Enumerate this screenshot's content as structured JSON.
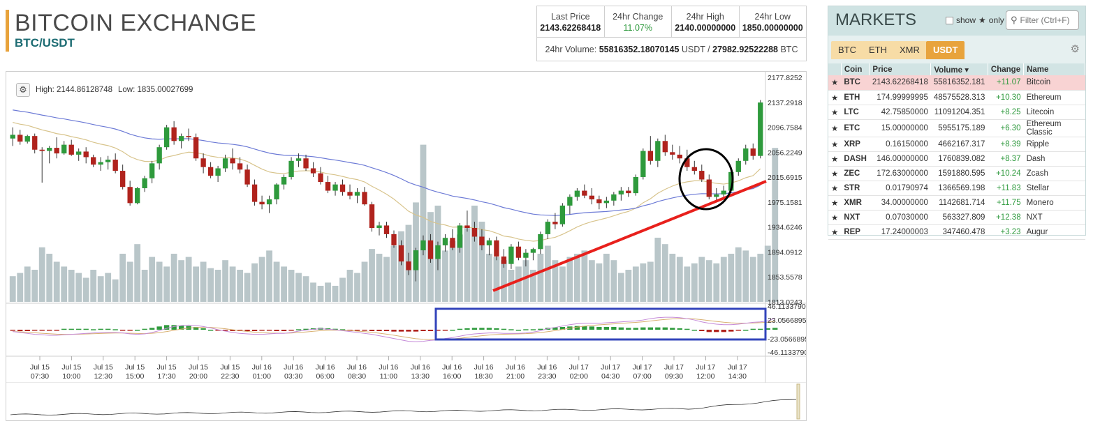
{
  "header": {
    "title": "BITCOIN EXCHANGE",
    "pair": "BTC/USDT"
  },
  "stats": {
    "last_price_label": "Last Price",
    "last_price": "2143.62268418",
    "change_label": "24hr Change",
    "change": "11.07%",
    "high_label": "24hr High",
    "high": "2140.00000000",
    "low_label": "24hr Low",
    "low": "1850.00000000",
    "volume_label": "24hr Volume:",
    "volume_usdt": "55816352.18070145",
    "usdt_unit": "USDT /",
    "volume_btc": "27982.92522288",
    "btc_unit": "BTC"
  },
  "chart": {
    "high_text": "High: 2144.86128748",
    "low_text": "Low: 1835.00027699",
    "price_ticks": [
      "2177.8252",
      "2137.2918",
      "2096.7584",
      "2056.2249",
      "2015.6915",
      "1975.1581",
      "1934.6246",
      "1894.0912",
      "1853.5578",
      "1813.0243"
    ],
    "macd_ticks": [
      "46.1133790",
      "23.0566895",
      "-23.0566895",
      "-46.1133790"
    ],
    "time_labels": [
      [
        "Jul 15",
        "07:30"
      ],
      [
        "Jul 15",
        "10:00"
      ],
      [
        "Jul 15",
        "12:30"
      ],
      [
        "Jul 15",
        "15:00"
      ],
      [
        "Jul 15",
        "17:30"
      ],
      [
        "Jul 15",
        "20:00"
      ],
      [
        "Jul 15",
        "22:30"
      ],
      [
        "Jul 16",
        "01:00"
      ],
      [
        "Jul 16",
        "03:30"
      ],
      [
        "Jul 16",
        "06:00"
      ],
      [
        "Jul 16",
        "08:30"
      ],
      [
        "Jul 16",
        "11:00"
      ],
      [
        "Jul 16",
        "13:30"
      ],
      [
        "Jul 16",
        "16:00"
      ],
      [
        "Jul 16",
        "18:30"
      ],
      [
        "Jul 16",
        "21:00"
      ],
      [
        "Jul 16",
        "23:30"
      ],
      [
        "Jul 17",
        "02:00"
      ],
      [
        "Jul 17",
        "04:30"
      ],
      [
        "Jul 17",
        "07:00"
      ],
      [
        "Jul 17",
        "09:30"
      ],
      [
        "Jul 17",
        "12:00"
      ],
      [
        "Jul 17",
        "14:30"
      ]
    ],
    "colors": {
      "up": "#2e9a3c",
      "down": "#b0231d",
      "volume": "#b9c6c9",
      "ema_fast": "#d8c48c",
      "ema_slow": "#6c7ad6",
      "macd_signal": "#d8b070",
      "macd_line": "#c58ad8",
      "annot_red": "#e8201c",
      "annot_blue": "#3344bb",
      "annot_black": "#000000"
    },
    "candles": [
      [
        2076,
        2094,
        2064,
        2082
      ],
      [
        2082,
        2090,
        2066,
        2071
      ],
      [
        2071,
        2082,
        2068,
        2080
      ],
      [
        2080,
        2084,
        2052,
        2058
      ],
      [
        2058,
        2062,
        2005,
        2056
      ],
      [
        2056,
        2064,
        2036,
        2061
      ],
      [
        2061,
        2078,
        2044,
        2052
      ],
      [
        2052,
        2072,
        2050,
        2066
      ],
      [
        2066,
        2074,
        2048,
        2050
      ],
      [
        2050,
        2060,
        2040,
        2055
      ],
      [
        2055,
        2062,
        2036,
        2046
      ],
      [
        2046,
        2050,
        2030,
        2034
      ],
      [
        2034,
        2046,
        2024,
        2038
      ],
      [
        2038,
        2048,
        2026,
        2042
      ],
      [
        2042,
        2052,
        2020,
        2024
      ],
      [
        2024,
        2034,
        1994,
        1998
      ],
      [
        1998,
        2008,
        1968,
        1972
      ],
      [
        1972,
        1998,
        1970,
        1996
      ],
      [
        1996,
        2016,
        1990,
        2012
      ],
      [
        2012,
        2040,
        2004,
        2036
      ],
      [
        2036,
        2066,
        2026,
        2062
      ],
      [
        2062,
        2098,
        2058,
        2094
      ],
      [
        2094,
        2104,
        2066,
        2072
      ],
      [
        2072,
        2084,
        2060,
        2080
      ],
      [
        2080,
        2092,
        2072,
        2078
      ],
      [
        2078,
        2084,
        2040,
        2044
      ],
      [
        2044,
        2052,
        2020,
        2030
      ],
      [
        2030,
        2038,
        2012,
        2016
      ],
      [
        2016,
        2032,
        2006,
        2028
      ],
      [
        2028,
        2050,
        2022,
        2044
      ],
      [
        2044,
        2060,
        2026,
        2036
      ],
      [
        2036,
        2046,
        2020,
        2026
      ],
      [
        2026,
        2034,
        1998,
        2002
      ],
      [
        2002,
        2010,
        1968,
        1974
      ],
      [
        1974,
        1984,
        1962,
        1970
      ],
      [
        1970,
        1984,
        1956,
        1978
      ],
      [
        1978,
        2004,
        1970,
        2002
      ],
      [
        2002,
        2018,
        1994,
        2014
      ],
      [
        2014,
        2046,
        2010,
        2040
      ],
      [
        2040,
        2052,
        2030,
        2044
      ],
      [
        2044,
        2050,
        2024,
        2028
      ],
      [
        2028,
        2038,
        2014,
        2020
      ],
      [
        2020,
        2030,
        2002,
        2006
      ],
      [
        2006,
        2016,
        1988,
        1992
      ],
      [
        1992,
        2006,
        1984,
        2002
      ],
      [
        2002,
        2010,
        1984,
        1990
      ],
      [
        1990,
        2002,
        1978,
        1984
      ],
      [
        1984,
        1996,
        1972,
        1990
      ],
      [
        1990,
        1998,
        1968,
        1970
      ],
      [
        1970,
        1974,
        1926,
        1932
      ],
      [
        1932,
        1942,
        1920,
        1936
      ],
      [
        1936,
        1942,
        1916,
        1922
      ],
      [
        1922,
        1928,
        1900,
        1904
      ],
      [
        1904,
        1912,
        1872,
        1878
      ],
      [
        1878,
        1892,
        1856,
        1864
      ],
      [
        1864,
        1900,
        1846,
        1896
      ],
      [
        1896,
        1920,
        1888,
        1912
      ],
      [
        1912,
        1922,
        1876,
        1882
      ],
      [
        1882,
        1910,
        1864,
        1904
      ],
      [
        1904,
        1922,
        1894,
        1916
      ],
      [
        1916,
        1930,
        1896,
        1900
      ],
      [
        1900,
        1940,
        1892,
        1936
      ],
      [
        1936,
        1960,
        1926,
        1932
      ],
      [
        1932,
        1942,
        1910,
        1918
      ],
      [
        1918,
        1930,
        1896,
        1904
      ],
      [
        1904,
        1916,
        1888,
        1912
      ],
      [
        1912,
        1918,
        1880,
        1886
      ],
      [
        1886,
        1898,
        1868,
        1874
      ],
      [
        1874,
        1906,
        1866,
        1902
      ],
      [
        1902,
        1910,
        1880,
        1884
      ],
      [
        1884,
        1898,
        1870,
        1892
      ],
      [
        1892,
        1900,
        1880,
        1898
      ],
      [
        1898,
        1926,
        1890,
        1922
      ],
      [
        1922,
        1946,
        1914,
        1942
      ],
      [
        1942,
        1956,
        1930,
        1938
      ],
      [
        1938,
        1972,
        1934,
        1968
      ],
      [
        1968,
        1986,
        1954,
        1982
      ],
      [
        1982,
        1996,
        1976,
        1992
      ],
      [
        1992,
        2002,
        1980,
        1984
      ],
      [
        1984,
        1996,
        1970,
        1978
      ],
      [
        1978,
        1984,
        1962,
        1972
      ],
      [
        1972,
        1982,
        1964,
        1976
      ],
      [
        1976,
        1990,
        1968,
        1986
      ],
      [
        1986,
        1998,
        1976,
        1992
      ],
      [
        1992,
        1998,
        1982,
        1988
      ],
      [
        1988,
        2018,
        1984,
        2014
      ],
      [
        2014,
        2060,
        2010,
        2056
      ],
      [
        2056,
        2080,
        2034,
        2040
      ],
      [
        2040,
        2076,
        2030,
        2072
      ],
      [
        2072,
        2082,
        2048,
        2054
      ],
      [
        2054,
        2066,
        2042,
        2050
      ],
      [
        2050,
        2064,
        2036,
        2044
      ],
      [
        2044,
        2058,
        2024,
        2030
      ],
      [
        2030,
        2040,
        2018,
        2024
      ],
      [
        2024,
        2034,
        2006,
        2010
      ],
      [
        2010,
        2018,
        1978,
        1982
      ],
      [
        1982,
        1996,
        1974,
        1986
      ],
      [
        1986,
        2000,
        1978,
        1992
      ],
      [
        1992,
        2026,
        1988,
        2022
      ],
      [
        2022,
        2044,
        2016,
        2040
      ],
      [
        2040,
        2066,
        2034,
        2060
      ],
      [
        2060,
        2068,
        2042,
        2048
      ],
      [
        2048,
        2138,
        2044,
        2134
      ]
    ],
    "volumes": [
      0.16,
      0.18,
      0.22,
      0.2,
      0.34,
      0.3,
      0.25,
      0.22,
      0.2,
      0.18,
      0.15,
      0.2,
      0.16,
      0.18,
      0.14,
      0.3,
      0.25,
      0.36,
      0.2,
      0.28,
      0.25,
      0.22,
      0.3,
      0.26,
      0.28,
      0.22,
      0.25,
      0.21,
      0.2,
      0.26,
      0.22,
      0.2,
      0.18,
      0.24,
      0.28,
      0.32,
      0.25,
      0.22,
      0.2,
      0.18,
      0.16,
      0.12,
      0.1,
      0.12,
      0.1,
      0.15,
      0.2,
      0.18,
      0.25,
      0.33,
      0.3,
      0.28,
      0.35,
      0.44,
      0.48,
      0.62,
      0.98,
      0.56,
      0.6,
      0.32,
      0.38,
      0.42,
      0.46,
      0.6,
      0.5,
      0.3,
      0.28,
      0.26,
      0.2,
      0.22,
      0.26,
      0.2,
      0.3,
      0.35,
      0.26,
      0.22,
      0.28,
      0.3,
      0.32,
      0.26,
      0.24,
      0.3,
      0.26,
      0.18,
      0.2,
      0.22,
      0.24,
      0.25,
      0.4,
      0.36,
      0.3,
      0.28,
      0.22,
      0.24,
      0.28,
      0.26,
      0.24,
      0.28,
      0.3,
      0.34,
      0.32,
      0.28,
      0.3,
      0.35,
      0.96
    ],
    "macd_hist": [
      -2,
      -3,
      -3,
      -2,
      -2,
      -2,
      -1,
      2,
      2,
      2,
      2,
      1,
      2,
      2,
      1,
      -1,
      -1,
      0,
      2,
      4,
      7,
      10,
      10,
      9,
      8,
      6,
      3,
      0,
      -1,
      -2,
      -3,
      -3,
      -3,
      -3,
      -2,
      -2,
      -3,
      -3,
      -1,
      1,
      2,
      3,
      4,
      3,
      2,
      1,
      -1,
      -2,
      -2,
      -3,
      -3,
      -3,
      -4,
      -4,
      -4,
      -4,
      -3,
      -3,
      -2,
      -1,
      0,
      2,
      3,
      4,
      4,
      4,
      3,
      2,
      1,
      0,
      1,
      1,
      2,
      4,
      5,
      6,
      7,
      8,
      8,
      7,
      6,
      6,
      6,
      5,
      4,
      4,
      5,
      5,
      5,
      5,
      4,
      3,
      2,
      0,
      -3,
      -5,
      -5,
      -5,
      -4,
      -2,
      0,
      2,
      2,
      3,
      4
    ],
    "macd_line": [
      -4,
      -6,
      -8,
      -10,
      -11,
      -12,
      -12,
      -11,
      -10,
      -9,
      -8,
      -7,
      -6,
      -6,
      -6,
      -7,
      -9,
      -10,
      -9,
      -6,
      -2,
      3,
      7,
      9,
      10,
      9,
      7,
      4,
      0,
      -3,
      -6,
      -8,
      -9,
      -10,
      -10,
      -9,
      -8,
      -8,
      -6,
      -3,
      -1,
      1,
      2,
      1,
      0,
      -2,
      -4,
      -6,
      -8,
      -10,
      -13,
      -16,
      -19,
      -22,
      -25,
      -26,
      -25,
      -23,
      -22,
      -19,
      -17,
      -14,
      -11,
      -9,
      -8,
      -7,
      -7,
      -8,
      -8,
      -8,
      -7,
      -5,
      -2,
      2,
      5,
      8,
      11,
      13,
      14,
      14,
      14,
      15,
      16,
      17,
      18,
      19,
      21,
      24,
      26,
      27,
      27,
      26,
      24,
      21,
      17,
      14,
      12,
      11,
      11,
      12,
      14,
      16,
      17,
      19,
      25
    ]
  },
  "markets": {
    "title": "MARKETS",
    "show_label": "show",
    "star_glyph": "★",
    "only_label": "only",
    "filter_placeholder": "Filter (Ctrl+F)",
    "tabs": [
      "BTC",
      "ETH",
      "XMR",
      "USDT"
    ],
    "columns": [
      "Coin",
      "Price",
      "Volume ▾",
      "Change",
      "Name"
    ],
    "rows": [
      {
        "coin": "BTC",
        "price": "2143.62268418",
        "volume": "55816352.181",
        "change": "+11.07",
        "name": "Bitcoin"
      },
      {
        "coin": "ETH",
        "price": "174.99999995",
        "volume": "48575528.313",
        "change": "+10.30",
        "name": "Ethereum"
      },
      {
        "coin": "LTC",
        "price": "42.75850000",
        "volume": "11091204.351",
        "change": "+8.25",
        "name": "Litecoin"
      },
      {
        "coin": "ETC",
        "price": "15.00000000",
        "volume": "5955175.189",
        "change": "+6.30",
        "name": "Ethereum Classic"
      },
      {
        "coin": "XRP",
        "price": "0.16150000",
        "volume": "4662167.317",
        "change": "+8.39",
        "name": "Ripple"
      },
      {
        "coin": "DASH",
        "price": "146.00000000",
        "volume": "1760839.082",
        "change": "+8.37",
        "name": "Dash"
      },
      {
        "coin": "ZEC",
        "price": "172.63000000",
        "volume": "1591880.595",
        "change": "+10.24",
        "name": "Zcash"
      },
      {
        "coin": "STR",
        "price": "0.01790974",
        "volume": "1366569.198",
        "change": "+11.83",
        "name": "Stellar"
      },
      {
        "coin": "XMR",
        "price": "34.00000000",
        "volume": "1142681.714",
        "change": "+11.75",
        "name": "Monero"
      },
      {
        "coin": "NXT",
        "price": "0.07030000",
        "volume": "563327.809",
        "change": "+12.38",
        "name": "NXT"
      },
      {
        "coin": "REP",
        "price": "17.24000003",
        "volume": "347460.478",
        "change": "+3.23",
        "name": "Augur"
      }
    ]
  }
}
